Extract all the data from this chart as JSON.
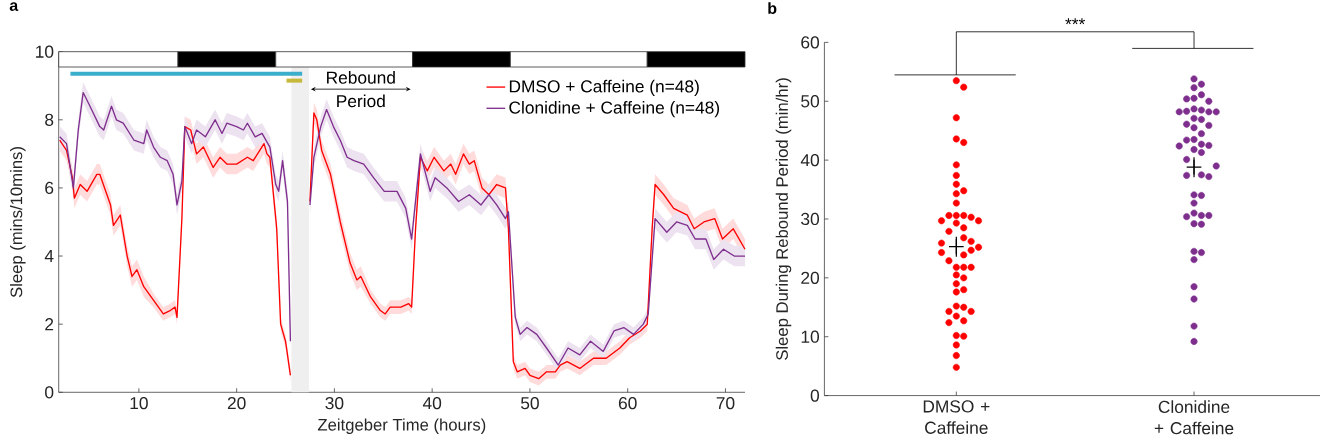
{
  "chart_data": [
    {
      "type": "line",
      "title": "a",
      "xlabel": "Zeitgeber Time (hours)",
      "ylabel": "Sleep (mins/10mins)",
      "xlim": [
        1.8,
        72
      ],
      "ylim": [
        0,
        10
      ],
      "xticks": [
        10,
        20,
        30,
        40,
        50,
        60,
        70
      ],
      "yticks": [
        0,
        2,
        4,
        6,
        8,
        10
      ],
      "legend": "top right",
      "series": [
        {
          "name": "DMSO + Caffeine (n=48)",
          "color": "#ff0000",
          "x": [
            1.9,
            2.6,
            3.2,
            3.4,
            4.0,
            4.7,
            5.7,
            6.0,
            7.1,
            7.4,
            8.1,
            8.8,
            9.3,
            9.8,
            10.5,
            11.5,
            12.5,
            13.2,
            13.7,
            13.9,
            14.4,
            14.7,
            15.3,
            15.9,
            16.6,
            17.6,
            18.3,
            19.0,
            20.0,
            21.1,
            21.7,
            22.8,
            23.1,
            23.4,
            24.1,
            24.5,
            25.0,
            25.5,
            26.5,
            27.5,
            27.9,
            28.2,
            28.7,
            29.6,
            30.6,
            31.6,
            32.3,
            32.7,
            33.7,
            34.7,
            35.2,
            35.7,
            36.8,
            37.6,
            37.9,
            38.3,
            38.8,
            39.5,
            40.2,
            41.2,
            41.9,
            42.4,
            43.2,
            43.8,
            44.3,
            45.1,
            45.8,
            46.6,
            47.5,
            47.8,
            48.3,
            48.7,
            49.5,
            50.0,
            50.9,
            51.7,
            52.6,
            53.1,
            53.8,
            55.1,
            56.5,
            57.8,
            59.2,
            60.2,
            61.3,
            62.0,
            62.5,
            62.8,
            63.7,
            64.7,
            66.1,
            66.8,
            67.8,
            68.9,
            69.7,
            70.8,
            72.0
          ],
          "values": [
            7.4,
            7.1,
            6.3,
            5.7,
            6.1,
            5.9,
            6.4,
            6.4,
            5.5,
            4.9,
            5.2,
            4.0,
            3.4,
            3.6,
            3.1,
            2.7,
            2.3,
            2.4,
            2.5,
            2.2,
            5.1,
            7.8,
            7.7,
            7.0,
            7.2,
            6.6,
            6.9,
            6.7,
            6.7,
            6.9,
            6.8,
            7.3,
            7.0,
            6.9,
            4.8,
            2.0,
            1.5,
            0.5,
            null,
            5.6,
            8.2,
            8.0,
            7.1,
            6.4,
            5.0,
            3.8,
            3.3,
            3.4,
            2.8,
            2.4,
            2.3,
            2.5,
            2.5,
            2.6,
            2.5,
            4.8,
            6.9,
            6.5,
            6.9,
            6.5,
            6.7,
            6.4,
            7.0,
            6.7,
            6.8,
            6.0,
            5.8,
            6.1,
            6.0,
            4.8,
            0.9,
            0.6,
            0.7,
            0.5,
            0.4,
            0.6,
            0.6,
            0.8,
            0.9,
            0.7,
            1.0,
            1.0,
            1.3,
            1.6,
            1.8,
            2.0,
            4.8,
            6.1,
            5.8,
            5.4,
            5.2,
            4.8,
            5.0,
            5.1,
            4.5,
            4.8,
            4.2
          ],
          "lower": [
            7.1,
            6.8,
            6.0,
            5.4,
            5.8,
            5.6,
            6.1,
            6.1,
            5.2,
            4.6,
            4.9,
            3.7,
            3.1,
            3.3,
            2.8,
            2.5,
            2.1,
            2.2,
            2.3,
            2.0,
            4.8,
            7.5,
            7.4,
            6.7,
            6.9,
            6.3,
            6.6,
            6.4,
            6.4,
            6.6,
            6.5,
            7.0,
            6.7,
            6.6,
            4.5,
            1.8,
            1.3,
            0.3,
            null,
            5.3,
            7.9,
            7.7,
            6.8,
            6.1,
            4.7,
            3.5,
            3.0,
            3.1,
            2.6,
            2.2,
            2.1,
            2.3,
            2.3,
            2.4,
            2.3,
            4.5,
            6.6,
            6.2,
            6.6,
            6.2,
            6.4,
            6.1,
            6.7,
            6.4,
            6.5,
            5.7,
            5.5,
            5.8,
            5.7,
            4.5,
            0.7,
            0.4,
            0.5,
            0.3,
            0.2,
            0.4,
            0.4,
            0.6,
            0.7,
            0.5,
            0.8,
            0.8,
            1.1,
            1.4,
            1.6,
            1.8,
            4.5,
            5.8,
            5.5,
            5.1,
            4.9,
            4.5,
            4.7,
            4.8,
            4.2,
            4.5,
            3.9
          ],
          "upper": [
            7.7,
            7.4,
            6.6,
            6.0,
            6.4,
            6.2,
            6.7,
            6.7,
            5.8,
            5.2,
            5.5,
            4.3,
            3.7,
            3.9,
            3.4,
            2.9,
            2.5,
            2.6,
            2.7,
            2.4,
            5.4,
            8.1,
            8.0,
            7.3,
            7.5,
            6.9,
            7.2,
            7.0,
            7.0,
            7.2,
            7.1,
            7.6,
            7.3,
            7.2,
            5.1,
            2.2,
            1.7,
            0.7,
            null,
            5.9,
            8.5,
            8.3,
            7.4,
            6.7,
            5.3,
            4.1,
            3.6,
            3.7,
            3.0,
            2.6,
            2.5,
            2.7,
            2.7,
            2.8,
            2.7,
            5.1,
            7.2,
            6.8,
            7.2,
            6.8,
            7.0,
            6.7,
            7.3,
            7.0,
            7.1,
            6.3,
            6.1,
            6.4,
            6.3,
            5.1,
            1.1,
            0.8,
            0.9,
            0.7,
            0.6,
            0.8,
            0.8,
            1.0,
            1.1,
            0.9,
            1.2,
            1.2,
            1.5,
            1.8,
            2.0,
            2.2,
            5.1,
            6.4,
            6.1,
            5.7,
            5.5,
            5.1,
            5.3,
            5.4,
            4.8,
            5.1,
            4.5
          ]
        },
        {
          "name": "Clonidine + Caffeine (n=48)",
          "color": "#7e2f8e",
          "x": [
            1.9,
            2.6,
            3.3,
            3.8,
            4.3,
            5.0,
            6.0,
            6.4,
            7.2,
            7.7,
            8.4,
            9.5,
            10.5,
            10.8,
            11.5,
            12.2,
            12.9,
            13.5,
            13.9,
            14.4,
            14.7,
            15.4,
            15.9,
            16.8,
            17.8,
            18.5,
            19.0,
            20.0,
            20.7,
            21.1,
            21.9,
            22.6,
            23.4,
            24.0,
            24.3,
            24.7,
            25.2,
            25.5,
            26.5,
            27.5,
            27.9,
            28.6,
            29.2,
            29.9,
            30.6,
            31.3,
            32.0,
            33.0,
            34.0,
            35.1,
            36.4,
            37.3,
            37.9,
            38.8,
            39.8,
            40.3,
            41.5,
            42.7,
            43.8,
            45.0,
            45.8,
            46.6,
            47.5,
            47.8,
            48.5,
            49.0,
            49.7,
            50.7,
            51.7,
            52.9,
            53.9,
            55.1,
            56.2,
            57.5,
            58.6,
            59.6,
            60.6,
            61.6,
            62.1,
            62.8,
            64.0,
            65.0,
            66.1,
            66.9,
            68.0,
            68.8,
            69.8,
            70.9,
            72.0
          ],
          "values": [
            7.5,
            7.3,
            6.0,
            7.7,
            8.8,
            8.4,
            7.8,
            7.7,
            8.4,
            8.0,
            7.9,
            7.4,
            7.3,
            7.7,
            7.2,
            6.9,
            6.8,
            6.4,
            5.5,
            6.2,
            7.8,
            7.3,
            7.7,
            7.5,
            8.0,
            7.6,
            7.9,
            7.8,
            7.7,
            7.9,
            7.5,
            7.6,
            7.2,
            6.1,
            5.9,
            6.8,
            5.6,
            1.5,
            null,
            5.5,
            6.9,
            7.8,
            8.3,
            7.8,
            7.4,
            6.9,
            6.8,
            6.7,
            6.3,
            5.9,
            5.9,
            5.4,
            4.5,
            7.0,
            5.9,
            6.3,
            6.0,
            5.6,
            5.8,
            5.5,
            5.8,
            5.5,
            5.1,
            5.3,
            2.2,
            1.7,
            1.9,
            1.7,
            1.3,
            0.8,
            1.3,
            1.1,
            1.5,
            1.2,
            1.8,
            1.9,
            1.7,
            2.0,
            2.3,
            5.1,
            4.7,
            5.0,
            4.9,
            4.5,
            4.5,
            3.9,
            4.2,
            4.0,
            4.0
          ],
          "lower": [
            7.2,
            7.0,
            5.7,
            7.4,
            8.5,
            8.1,
            7.5,
            7.4,
            8.1,
            7.7,
            7.6,
            7.1,
            7.0,
            7.4,
            6.9,
            6.6,
            6.5,
            6.1,
            5.2,
            5.9,
            7.5,
            7.0,
            7.4,
            7.2,
            7.7,
            7.3,
            7.6,
            7.5,
            7.4,
            7.6,
            7.2,
            7.3,
            6.9,
            5.8,
            5.6,
            6.5,
            5.3,
            1.3,
            null,
            5.2,
            6.6,
            7.5,
            8.0,
            7.5,
            7.1,
            6.6,
            6.5,
            6.4,
            6.0,
            5.6,
            5.6,
            5.1,
            4.2,
            6.7,
            5.6,
            6.0,
            5.7,
            5.3,
            5.5,
            5.2,
            5.5,
            5.2,
            4.8,
            5.0,
            2.0,
            1.5,
            1.7,
            1.5,
            1.1,
            0.6,
            1.1,
            0.9,
            1.3,
            1.0,
            1.6,
            1.7,
            1.5,
            1.8,
            2.1,
            4.8,
            4.4,
            4.7,
            4.6,
            4.2,
            4.2,
            3.6,
            3.9,
            3.7,
            3.7
          ],
          "upper": [
            7.8,
            7.6,
            6.3,
            8.0,
            9.1,
            8.7,
            8.1,
            8.0,
            8.7,
            8.3,
            8.2,
            7.7,
            7.6,
            8.0,
            7.5,
            7.2,
            7.1,
            6.7,
            5.8,
            6.5,
            8.1,
            7.6,
            8.0,
            7.8,
            8.3,
            7.9,
            8.2,
            8.1,
            8.0,
            8.2,
            7.8,
            7.9,
            7.5,
            6.4,
            6.2,
            7.1,
            5.9,
            1.7,
            null,
            5.8,
            7.2,
            8.1,
            8.6,
            8.1,
            7.7,
            7.2,
            7.1,
            7.0,
            6.6,
            6.2,
            6.2,
            5.7,
            4.8,
            7.3,
            6.2,
            6.6,
            6.3,
            5.9,
            6.1,
            5.8,
            6.1,
            5.8,
            5.4,
            5.6,
            2.4,
            1.9,
            2.1,
            1.9,
            1.5,
            1.0,
            1.5,
            1.3,
            1.7,
            1.4,
            2.0,
            2.1,
            1.9,
            2.2,
            2.5,
            5.4,
            5.0,
            5.3,
            5.2,
            4.8,
            4.8,
            4.2,
            4.5,
            4.3,
            4.3
          ]
        },
        {
          "type": "line",
          "color": "#3aaecb",
          "x": [
            3.0,
            26.7
          ],
          "values": [
            9.35,
            9.35
          ]
        },
        {
          "type": "line",
          "color": "#c6b83a",
          "x": [
            25.1,
            26.7
          ],
          "values": [
            9.15,
            9.15
          ]
        }
      ],
      "bands": [
        {
          "axis": "x",
          "from": 25.6,
          "to": 27.4,
          "color": "#efefef"
        },
        {
          "axis": "x",
          "from": 1.8,
          "to": 14,
          "color": "#ffffff"
        },
        {
          "axis": "x",
          "from": 14,
          "to": 24,
          "color": "#000000"
        },
        {
          "axis": "x",
          "from": 24,
          "to": 38,
          "color": "#ffffff"
        },
        {
          "axis": "x",
          "from": 38,
          "to": 48,
          "color": "#000000"
        },
        {
          "axis": "x",
          "from": 48,
          "to": 62,
          "color": "#ffffff"
        },
        {
          "axis": "x",
          "from": 62,
          "to": 72,
          "color": "#000000"
        }
      ],
      "annotations": [
        "Rebound Period"
      ]
    },
    {
      "type": "scatter",
      "title": "b",
      "ylabel": "Sleep During Rebound Period (min/hr)",
      "categories": [
        "DMSO + Caffeine",
        "Clonidine + Caffeine"
      ],
      "ylim": [
        0,
        60
      ],
      "yticks": [
        0,
        10,
        20,
        30,
        40,
        50,
        60
      ],
      "series": [
        {
          "color": "#ff0000",
          "marker": "circle",
          "x": [
            "DMSO + Caffeine",
            "DMSO + Caffeine",
            "DMSO + Caffeine",
            "DMSO + Caffeine",
            "DMSO + Caffeine",
            "DMSO + Caffeine",
            "DMSO + Caffeine",
            "DMSO + Caffeine",
            "DMSO + Caffeine",
            "DMSO + Caffeine",
            "DMSO + Caffeine",
            "DMSO + Caffeine",
            "DMSO + Caffeine",
            "DMSO + Caffeine",
            "DMSO + Caffeine",
            "DMSO + Caffeine",
            "DMSO + Caffeine",
            "DMSO + Caffeine",
            "DMSO + Caffeine",
            "DMSO + Caffeine",
            "DMSO + Caffeine",
            "DMSO + Caffeine",
            "DMSO + Caffeine",
            "DMSO + Caffeine",
            "DMSO + Caffeine",
            "DMSO + Caffeine",
            "DMSO + Caffeine",
            "DMSO + Caffeine",
            "DMSO + Caffeine",
            "DMSO + Caffeine",
            "DMSO + Caffeine",
            "DMSO + Caffeine",
            "DMSO + Caffeine",
            "DMSO + Caffeine",
            "DMSO + Caffeine",
            "DMSO + Caffeine",
            "DMSO + Caffeine",
            "DMSO + Caffeine",
            "DMSO + Caffeine",
            "DMSO + Caffeine",
            "DMSO + Caffeine",
            "DMSO + Caffeine",
            "DMSO + Caffeine",
            "DMSO + Caffeine",
            "DMSO + Caffeine",
            "DMSO + Caffeine",
            "DMSO + Caffeine",
            "DMSO + Caffeine"
          ],
          "values": [
            53.5,
            52.4,
            47.2,
            43.6,
            43.0,
            39.2,
            37.4,
            35.9,
            34.8,
            34.3,
            32.7,
            30.6,
            30.6,
            30.6,
            30.3,
            29.7,
            29.7,
            29.3,
            28.5,
            27.9,
            26.8,
            26.2,
            25.9,
            25.2,
            24.7,
            24.3,
            23.9,
            22.9,
            21.8,
            21.8,
            21.8,
            20.5,
            20.0,
            19.0,
            18.0,
            17.6,
            15.2,
            15.0,
            14.3,
            14.3,
            13.5,
            12.7,
            12.4,
            10.2,
            10.1,
            8.6,
            6.8,
            4.8
          ]
        },
        {
          "color": "#7e2f8e",
          "marker": "circle",
          "x": [
            "Clonidine + Caffeine",
            "Clonidine + Caffeine",
            "Clonidine + Caffeine",
            "Clonidine + Caffeine",
            "Clonidine + Caffeine",
            "Clonidine + Caffeine",
            "Clonidine + Caffeine",
            "Clonidine + Caffeine",
            "Clonidine + Caffeine",
            "Clonidine + Caffeine",
            "Clonidine + Caffeine",
            "Clonidine + Caffeine",
            "Clonidine + Caffeine",
            "Clonidine + Caffeine",
            "Clonidine + Caffeine",
            "Clonidine + Caffeine",
            "Clonidine + Caffeine",
            "Clonidine + Caffeine",
            "Clonidine + Caffeine",
            "Clonidine + Caffeine",
            "Clonidine + Caffeine",
            "Clonidine + Caffeine",
            "Clonidine + Caffeine",
            "Clonidine + Caffeine",
            "Clonidine + Caffeine",
            "Clonidine + Caffeine",
            "Clonidine + Caffeine",
            "Clonidine + Caffeine",
            "Clonidine + Caffeine",
            "Clonidine + Caffeine",
            "Clonidine + Caffeine",
            "Clonidine + Caffeine",
            "Clonidine + Caffeine",
            "Clonidine + Caffeine",
            "Clonidine + Caffeine",
            "Clonidine + Caffeine",
            "Clonidine + Caffeine",
            "Clonidine + Caffeine",
            "Clonidine + Caffeine",
            "Clonidine + Caffeine",
            "Clonidine + Caffeine",
            "Clonidine + Caffeine",
            "Clonidine + Caffeine",
            "Clonidine + Caffeine",
            "Clonidine + Caffeine",
            "Clonidine + Caffeine",
            "Clonidine + Caffeine"
          ],
          "values": [
            53.8,
            52.9,
            52.3,
            51.1,
            50.5,
            50.4,
            50.0,
            48.7,
            48.5,
            48.3,
            48.2,
            48.2,
            48.2,
            47.1,
            46.9,
            46.1,
            45.9,
            45.5,
            44.5,
            43.5,
            43.4,
            42.7,
            42.5,
            42.4,
            41.8,
            41.3,
            40.1,
            39.0,
            37.5,
            37.4,
            37.2,
            34.1,
            34.0,
            32.7,
            31.0,
            30.6,
            30.4,
            30.6,
            29.2,
            29.1,
            24.5,
            24.3,
            23.1,
            18.5,
            16.4,
            11.8,
            9.2
          ]
        },
        {
          "type": "scatter",
          "marker": "cross",
          "color": "#000000",
          "x": [
            "DMSO + Caffeine",
            "Clonidine + Caffeine"
          ],
          "values": [
            25.3,
            38.8
          ],
          "errors": [
            1.7,
            1.7
          ]
        }
      ],
      "annotations": [
        "***"
      ]
    }
  ]
}
